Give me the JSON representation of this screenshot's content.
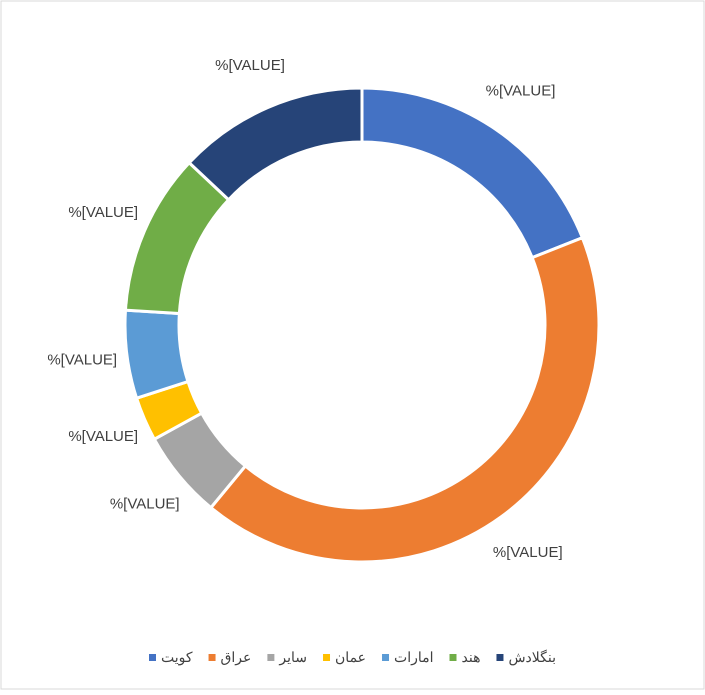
{
  "chart_data": {
    "type": "pie",
    "categories": [
      "کویت",
      "عراق",
      "سایر",
      "عمان",
      "امارات",
      "هند",
      "بنگلادش"
    ],
    "values": [
      19,
      42,
      6,
      3,
      6,
      11,
      13
    ],
    "data_labels": [
      "%[VALUE]",
      "%[VALUE]",
      "%[VALUE]",
      "%[VALUE]",
      "%[VALUE]",
      "%[VALUE]",
      "%[VALUE]"
    ],
    "colors": [
      "#4472c4",
      "#ed7d31",
      "#a5a5a5",
      "#ffc000",
      "#5b9bd5",
      "#70ad47",
      "#264478"
    ],
    "donut": true
  }
}
